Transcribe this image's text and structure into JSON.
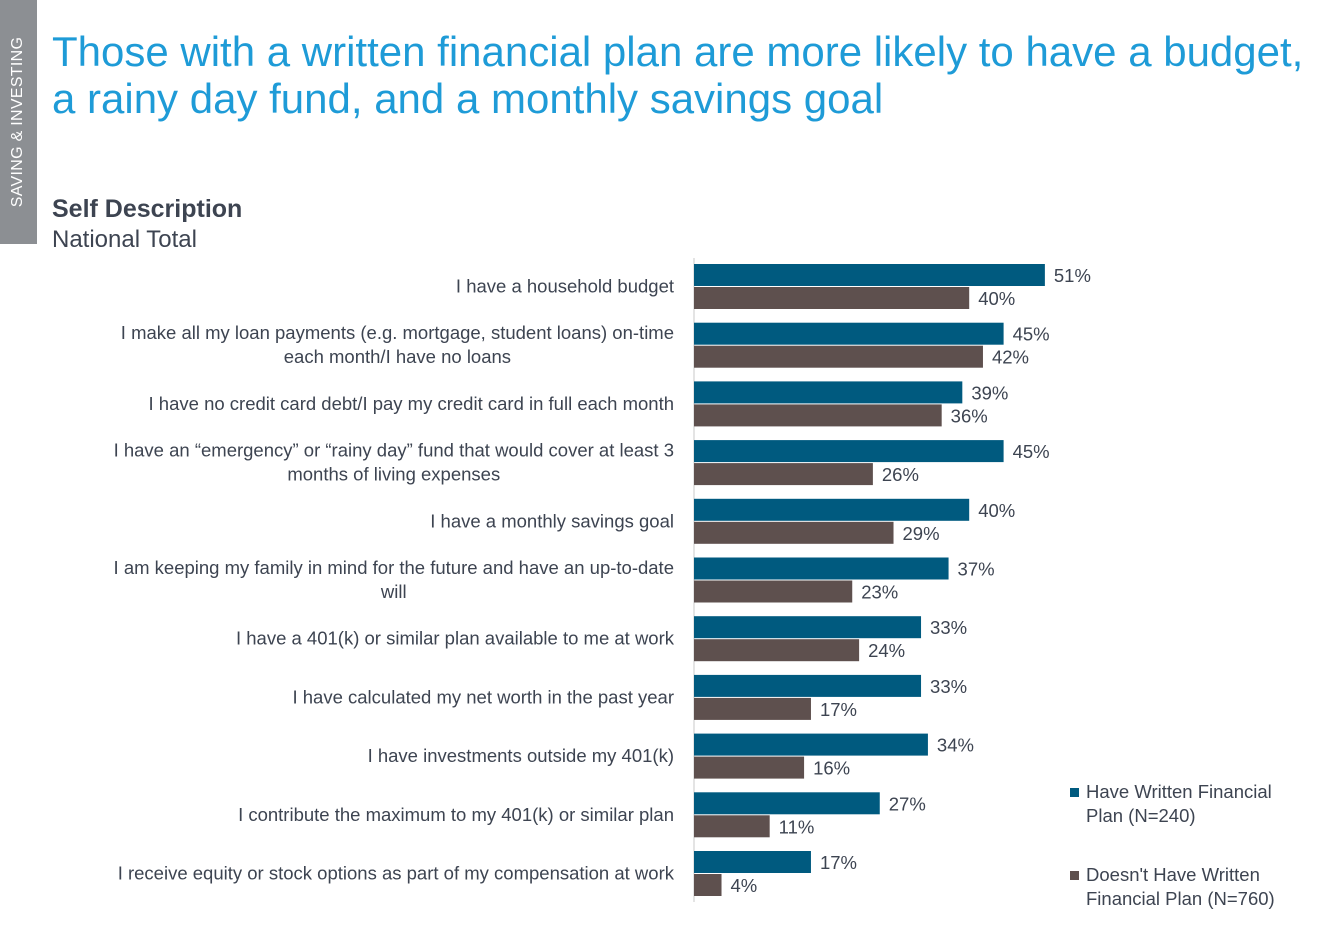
{
  "side_tab": {
    "label": "SAVING & INVESTING"
  },
  "header": {
    "title": "Those with a written financial plan are more likely to have a budget, a rainy day fund, and a monthly savings goal",
    "subtitle": "Self Description",
    "subtitle2": "National Total"
  },
  "colors": {
    "written": "#005a7f",
    "no_written": "#5e504e",
    "title": "#1e9bd7"
  },
  "chart_data": {
    "type": "bar",
    "orientation": "horizontal",
    "title": "",
    "xlabel": "",
    "ylabel": "",
    "xlim": [
      0,
      60
    ],
    "grid": false,
    "legend_position": "bottom-right",
    "categories": [
      [
        "I have a household budget"
      ],
      [
        "I make all my loan payments (e.g. mortgage, student loans) on-time",
        "each month/I have no loans"
      ],
      [
        "I have no credit card debt/I pay my credit card in full each month"
      ],
      [
        "I have an “emergency” or “rainy day” fund that would cover at least 3",
        "months of living expenses"
      ],
      [
        "I have a monthly savings goal"
      ],
      [
        "I am keeping my family in mind for the future and have an up-to-date",
        "will"
      ],
      [
        "I have a 401(k) or similar plan available to me at work"
      ],
      [
        "I have calculated my net worth in the past year"
      ],
      [
        "I have investments outside my 401(k)"
      ],
      [
        "I contribute the maximum to my 401(k) or similar plan"
      ],
      [
        "I receive equity or stock options as part of my compensation at work"
      ]
    ],
    "series": [
      {
        "name": "Have Written Financial Plan (N=240)",
        "legend_lines": [
          "Have Written Financial",
          "Plan (N=240)"
        ],
        "values": [
          51,
          45,
          39,
          45,
          40,
          37,
          33,
          33,
          34,
          27,
          17
        ],
        "labels": [
          "51%",
          "45%",
          "39%",
          "45%",
          "40%",
          "37%",
          "33%",
          "33%",
          "34%",
          "27%",
          "17%"
        ]
      },
      {
        "name": "Doesn't Have Written Financial Plan (N=760)",
        "legend_lines": [
          "Doesn't Have Written",
          "Financial Plan (N=760)"
        ],
        "values": [
          40,
          42,
          36,
          26,
          29,
          23,
          24,
          17,
          16,
          11,
          4
        ],
        "labels": [
          "40%",
          "42%",
          "36%",
          "26%",
          "29%",
          "23%",
          "24%",
          "17%",
          "16%",
          "11%",
          "4%"
        ]
      }
    ]
  }
}
